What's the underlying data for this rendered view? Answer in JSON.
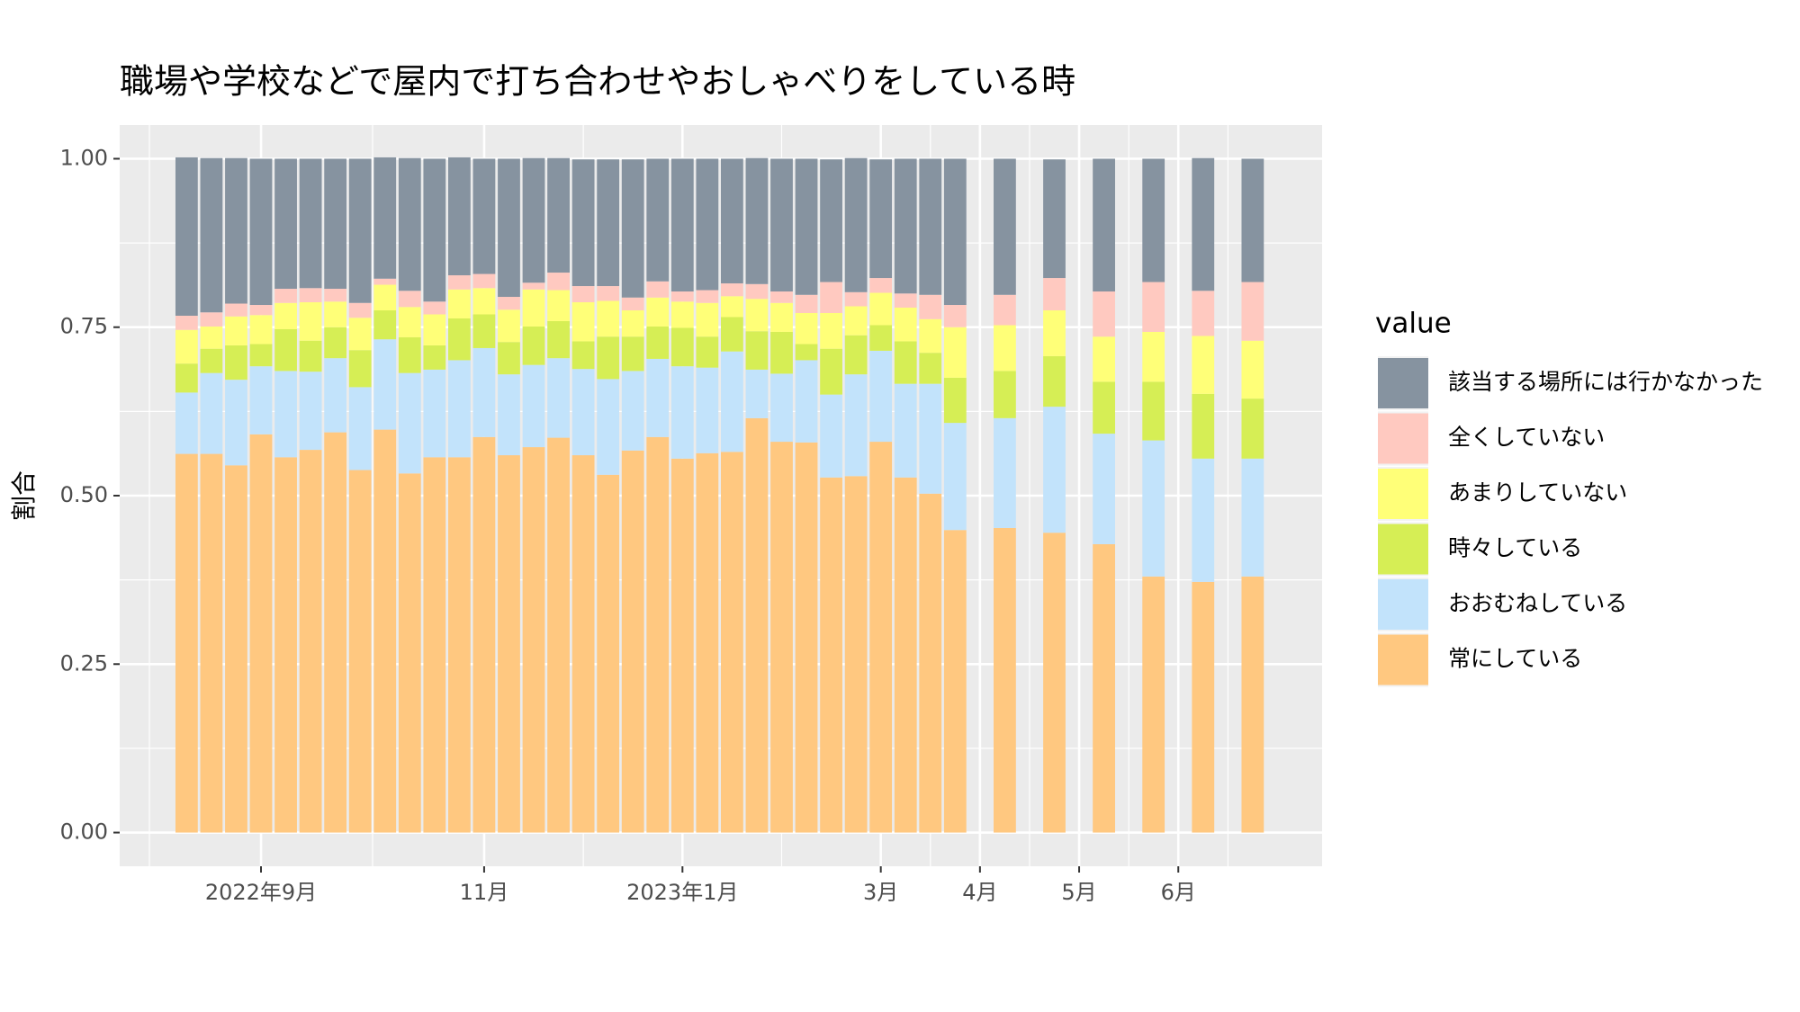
{
  "chart_data": {
    "type": "bar",
    "stacked": true,
    "title": "職場や学校などで屋内で打ち合わせやおしゃべりをしている時",
    "y_label": "割合",
    "legend_title": "value",
    "x": [
      0,
      1,
      2,
      3,
      4,
      5,
      6,
      7,
      8,
      9,
      10,
      11,
      12,
      13,
      14,
      15,
      16,
      17,
      18,
      19,
      20,
      21,
      22,
      23,
      24,
      25,
      26,
      27,
      28,
      29,
      30,
      31,
      33,
      35,
      37,
      39,
      41,
      43
    ],
    "xlim": [
      -2.7,
      45.8
    ],
    "xticks": [
      {
        "value": 3,
        "label": "2022年9月"
      },
      {
        "value": 12,
        "label": "11月"
      },
      {
        "value": 20,
        "label": "2023年1月"
      },
      {
        "value": 28,
        "label": "3月"
      },
      {
        "value": 32,
        "label": "4月"
      },
      {
        "value": 36,
        "label": "5月"
      },
      {
        "value": 40,
        "label": "6月"
      }
    ],
    "ylim": [
      -0.05,
      1.05
    ],
    "yticks": [
      {
        "value": 0,
        "label": "0.00"
      },
      {
        "value": 0.25,
        "label": "0.25"
      },
      {
        "value": 0.5,
        "label": "0.50"
      },
      {
        "value": 0.75,
        "label": "0.75"
      },
      {
        "value": 1,
        "label": "1.00"
      }
    ],
    "grid": true,
    "legend": "right",
    "series": [
      {
        "name": "該当する場所には行かなかった",
        "color": "#8693a0",
        "values": [
          0.235,
          0.229,
          0.216,
          0.217,
          0.193,
          0.192,
          0.193,
          0.214,
          0.18,
          0.197,
          0.212,
          0.175,
          0.171,
          0.205,
          0.185,
          0.17,
          0.188,
          0.188,
          0.205,
          0.182,
          0.197,
          0.195,
          0.185,
          0.187,
          0.197,
          0.202,
          0.182,
          0.199,
          0.176,
          0.2,
          0.202,
          0.217,
          0.202,
          0.176,
          0.197,
          0.183,
          0.197,
          0.183
        ]
      },
      {
        "name": "全くしていない",
        "color": "#ffc9c0",
        "values": [
          0.021,
          0.021,
          0.019,
          0.015,
          0.021,
          0.021,
          0.019,
          0.022,
          0.009,
          0.024,
          0.019,
          0.021,
          0.021,
          0.019,
          0.01,
          0.026,
          0.024,
          0.022,
          0.019,
          0.024,
          0.015,
          0.019,
          0.019,
          0.022,
          0.017,
          0.027,
          0.046,
          0.021,
          0.022,
          0.021,
          0.036,
          0.033,
          0.045,
          0.048,
          0.067,
          0.074,
          0.067,
          0.087
        ]
      },
      {
        "name": "あまりしていない",
        "color": "#ffff78",
        "values": [
          0.05,
          0.033,
          0.043,
          0.043,
          0.039,
          0.057,
          0.038,
          0.048,
          0.038,
          0.045,
          0.046,
          0.043,
          0.039,
          0.048,
          0.055,
          0.046,
          0.058,
          0.053,
          0.039,
          0.043,
          0.039,
          0.05,
          0.031,
          0.048,
          0.043,
          0.046,
          0.053,
          0.043,
          0.048,
          0.05,
          0.05,
          0.075,
          0.068,
          0.068,
          0.067,
          0.074,
          0.086,
          0.086
        ]
      },
      {
        "name": "時々している",
        "color": "#d6ee55",
        "values": [
          0.043,
          0.036,
          0.051,
          0.033,
          0.062,
          0.046,
          0.046,
          0.055,
          0.043,
          0.053,
          0.036,
          0.062,
          0.05,
          0.048,
          0.057,
          0.055,
          0.041,
          0.063,
          0.051,
          0.048,
          0.057,
          0.046,
          0.051,
          0.057,
          0.062,
          0.024,
          0.068,
          0.058,
          0.038,
          0.063,
          0.046,
          0.067,
          0.07,
          0.075,
          0.077,
          0.087,
          0.096,
          0.089
        ]
      },
      {
        "name": "おおむねしている",
        "color": "#c2e3fb",
        "values": [
          0.091,
          0.12,
          0.127,
          0.101,
          0.128,
          0.116,
          0.11,
          0.123,
          0.134,
          0.149,
          0.13,
          0.144,
          0.132,
          0.12,
          0.122,
          0.118,
          0.128,
          0.142,
          0.118,
          0.116,
          0.137,
          0.127,
          0.149,
          0.072,
          0.101,
          0.122,
          0.123,
          0.151,
          0.135,
          0.139,
          0.163,
          0.159,
          0.163,
          0.187,
          0.164,
          0.202,
          0.183,
          0.175
        ]
      },
      {
        "name": "常にしている",
        "color": "#ffc880",
        "values": [
          0.562,
          0.562,
          0.545,
          0.591,
          0.557,
          0.568,
          0.594,
          0.538,
          0.598,
          0.533,
          0.557,
          0.557,
          0.587,
          0.56,
          0.572,
          0.586,
          0.56,
          0.531,
          0.567,
          0.587,
          0.555,
          0.563,
          0.565,
          0.615,
          0.58,
          0.579,
          0.527,
          0.529,
          0.58,
          0.527,
          0.503,
          0.449,
          0.452,
          0.445,
          0.428,
          0.38,
          0.372,
          0.38
        ]
      }
    ]
  }
}
